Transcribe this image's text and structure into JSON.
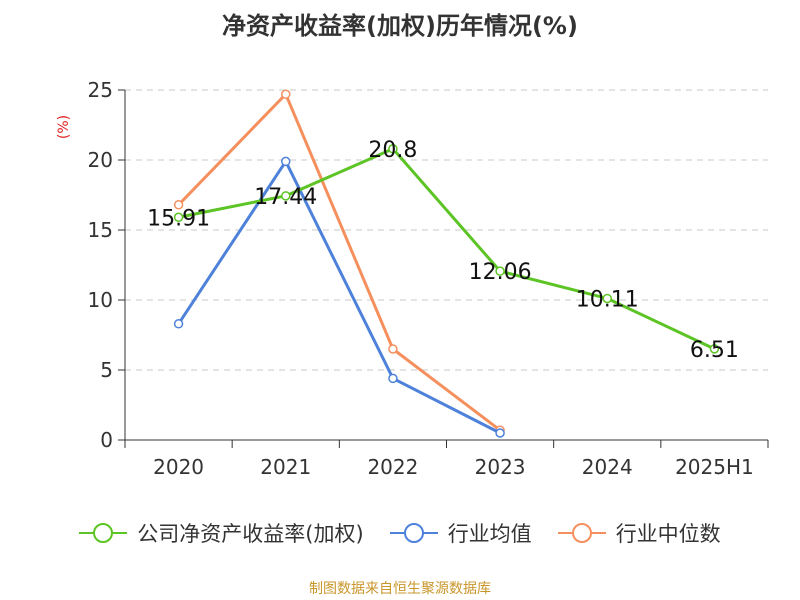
{
  "chart_data": {
    "type": "line",
    "title": "净资产收益率(加权)历年情况(%)",
    "ylabel": "(%)",
    "xlabel": "",
    "categories": [
      "2020",
      "2021",
      "2022",
      "2023",
      "2024",
      "2025H1"
    ],
    "ylim": [
      0,
      25
    ],
    "yticks": [
      0,
      5,
      10,
      15,
      20,
      25
    ],
    "grid": true,
    "legend_position": "bottom",
    "series": [
      {
        "name": "公司净资产收益率(加权)",
        "color": "#5cc424",
        "values": [
          15.91,
          17.44,
          20.8,
          12.06,
          10.11,
          6.51
        ],
        "labels": [
          "15.91",
          "17.44",
          "20.8",
          "12.06",
          "10.11",
          "6.51"
        ]
      },
      {
        "name": "行业均值",
        "color": "#4e82da",
        "values": [
          8.3,
          19.9,
          4.4,
          0.5,
          null,
          null
        ],
        "labels": []
      },
      {
        "name": "行业中位数",
        "color": "#f5905e",
        "values": [
          16.8,
          24.7,
          6.5,
          0.7,
          null,
          null
        ],
        "labels": []
      }
    ]
  },
  "source": "制图数据来自恒生聚源数据库",
  "colors": {
    "grid": "#c8c8c8",
    "axis": "#333333",
    "ylabel": "#e02020",
    "source": "#c9962b"
  }
}
